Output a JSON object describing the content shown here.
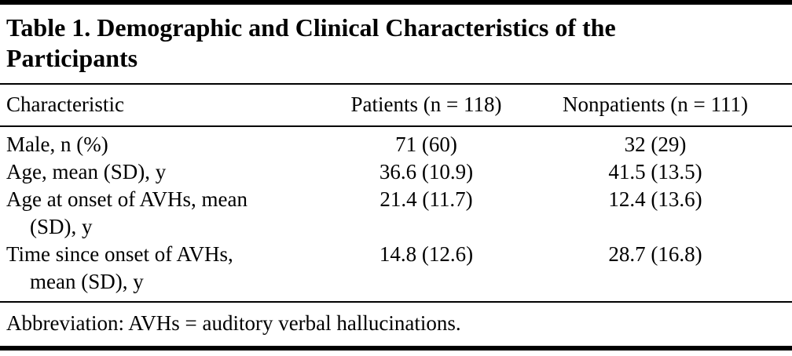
{
  "table": {
    "title": "Table 1. Demographic and Clinical Characteristics of the Participants",
    "columns": [
      "Characteristic",
      "Patients (n = 118)",
      "Nonpatients (n = 111)"
    ],
    "rows": [
      {
        "label1": "Male, n (%)",
        "label2": "",
        "patients": "71 (60)",
        "nonpatients": "32 (29)"
      },
      {
        "label1": "Age, mean (SD), y",
        "label2": "",
        "patients": "36.6 (10.9)",
        "nonpatients": "41.5 (13.5)"
      },
      {
        "label1": "Age at onset of AVHs, mean",
        "label2": "(SD), y",
        "patients": "21.4 (11.7)",
        "nonpatients": "12.4 (13.6)"
      },
      {
        "label1": "Time since onset of AVHs,",
        "label2": "mean (SD), y",
        "patients": "14.8 (12.6)",
        "nonpatients": "28.7 (16.8)"
      }
    ],
    "footnote": "Abbreviation: AVHs = auditory verbal hallucinations."
  }
}
